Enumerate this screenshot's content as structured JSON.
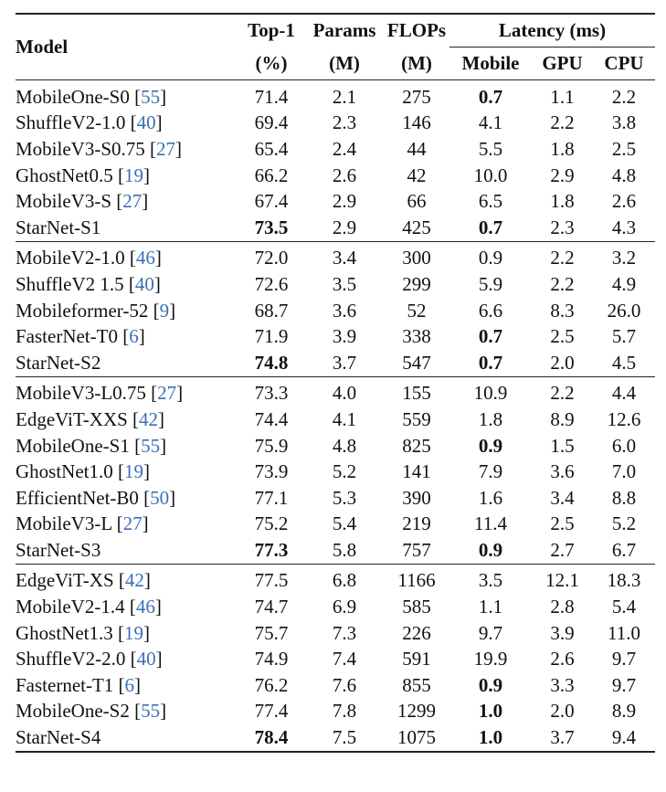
{
  "header": {
    "model": "Model",
    "top1": "Top-1",
    "top1_unit": "(%)",
    "params": "Params",
    "params_unit": "(M)",
    "flops": "FLOPs",
    "flops_unit": "(M)",
    "latency": "Latency (ms)",
    "mobile": "Mobile",
    "gpu": "GPU",
    "cpu": "CPU"
  },
  "colors": {
    "ref": "#3b6fb6",
    "text": "#111111"
  },
  "groups": [
    {
      "rows": [
        {
          "name": "MobileOne-S0",
          "ref": "55",
          "top1": "71.4",
          "params": "2.1",
          "flops": "275",
          "mobile": "0.7",
          "gpu": "1.1",
          "cpu": "2.2",
          "bold": [
            "mobile"
          ]
        },
        {
          "name": "ShuffleV2-1.0",
          "ref": "40",
          "top1": "69.4",
          "params": "2.3",
          "flops": "146",
          "mobile": "4.1",
          "gpu": "2.2",
          "cpu": "3.8",
          "bold": []
        },
        {
          "name": "MobileV3-S0.75",
          "ref": "27",
          "top1": "65.4",
          "params": "2.4",
          "flops": "44",
          "mobile": "5.5",
          "gpu": "1.8",
          "cpu": "2.5",
          "bold": []
        },
        {
          "name": "GhostNet0.5",
          "ref": "19",
          "top1": "66.2",
          "params": "2.6",
          "flops": "42",
          "mobile": "10.0",
          "gpu": "2.9",
          "cpu": "4.8",
          "bold": []
        },
        {
          "name": "MobileV3-S",
          "ref": "27",
          "top1": "67.4",
          "params": "2.9",
          "flops": "66",
          "mobile": "6.5",
          "gpu": "1.8",
          "cpu": "2.6",
          "bold": []
        },
        {
          "name": "StarNet-S1",
          "ref": "",
          "top1": "73.5",
          "params": "2.9",
          "flops": "425",
          "mobile": "0.7",
          "gpu": "2.3",
          "cpu": "4.3",
          "bold": [
            "top1",
            "mobile"
          ]
        }
      ]
    },
    {
      "rows": [
        {
          "name": "MobileV2-1.0",
          "ref": "46",
          "top1": "72.0",
          "params": "3.4",
          "flops": "300",
          "mobile": "0.9",
          "gpu": "2.2",
          "cpu": "3.2",
          "bold": []
        },
        {
          "name": "ShuffleV2 1.5",
          "ref": "40",
          "top1": "72.6",
          "params": "3.5",
          "flops": "299",
          "mobile": "5.9",
          "gpu": "2.2",
          "cpu": "4.9",
          "bold": []
        },
        {
          "name": "Mobileformer-52",
          "ref": "9",
          "top1": "68.7",
          "params": "3.6",
          "flops": "52",
          "mobile": "6.6",
          "gpu": "8.3",
          "cpu": "26.0",
          "bold": []
        },
        {
          "name": "FasterNet-T0",
          "ref": "6",
          "top1": "71.9",
          "params": "3.9",
          "flops": "338",
          "mobile": "0.7",
          "gpu": "2.5",
          "cpu": "5.7",
          "bold": [
            "mobile"
          ]
        },
        {
          "name": "StarNet-S2",
          "ref": "",
          "top1": "74.8",
          "params": "3.7",
          "flops": "547",
          "mobile": "0.7",
          "gpu": "2.0",
          "cpu": "4.5",
          "bold": [
            "top1",
            "mobile"
          ]
        }
      ]
    },
    {
      "rows": [
        {
          "name": "MobileV3-L0.75",
          "ref": "27",
          "top1": "73.3",
          "params": "4.0",
          "flops": "155",
          "mobile": "10.9",
          "gpu": "2.2",
          "cpu": "4.4",
          "bold": []
        },
        {
          "name": "EdgeViT-XXS",
          "ref": "42",
          "top1": "74.4",
          "params": "4.1",
          "flops": "559",
          "mobile": "1.8",
          "gpu": "8.9",
          "cpu": "12.6",
          "bold": []
        },
        {
          "name": "MobileOne-S1",
          "ref": "55",
          "top1": "75.9",
          "params": "4.8",
          "flops": "825",
          "mobile": "0.9",
          "gpu": "1.5",
          "cpu": "6.0",
          "bold": [
            "mobile"
          ]
        },
        {
          "name": "GhostNet1.0",
          "ref": "19",
          "top1": "73.9",
          "params": "5.2",
          "flops": "141",
          "mobile": "7.9",
          "gpu": "3.6",
          "cpu": "7.0",
          "bold": []
        },
        {
          "name": "EfficientNet-B0",
          "ref": "50",
          "top1": "77.1",
          "params": "5.3",
          "flops": "390",
          "mobile": "1.6",
          "gpu": "3.4",
          "cpu": "8.8",
          "bold": []
        },
        {
          "name": "MobileV3-L",
          "ref": "27",
          "top1": "75.2",
          "params": "5.4",
          "flops": "219",
          "mobile": "11.4",
          "gpu": "2.5",
          "cpu": "5.2",
          "bold": []
        },
        {
          "name": "StarNet-S3",
          "ref": "",
          "top1": "77.3",
          "params": "5.8",
          "flops": "757",
          "mobile": "0.9",
          "gpu": "2.7",
          "cpu": "6.7",
          "bold": [
            "top1",
            "mobile"
          ]
        }
      ]
    },
    {
      "rows": [
        {
          "name": "EdgeViT-XS",
          "ref": "42",
          "top1": "77.5",
          "params": "6.8",
          "flops": "1166",
          "mobile": "3.5",
          "gpu": "12.1",
          "cpu": "18.3",
          "bold": []
        },
        {
          "name": "MobileV2-1.4",
          "ref": "46",
          "top1": "74.7",
          "params": "6.9",
          "flops": "585",
          "mobile": "1.1",
          "gpu": "2.8",
          "cpu": "5.4",
          "bold": []
        },
        {
          "name": "GhostNet1.3",
          "ref": "19",
          "top1": "75.7",
          "params": "7.3",
          "flops": "226",
          "mobile": "9.7",
          "gpu": "3.9",
          "cpu": "11.0",
          "bold": []
        },
        {
          "name": "ShuffleV2-2.0",
          "ref": "40",
          "top1": "74.9",
          "params": "7.4",
          "flops": "591",
          "mobile": "19.9",
          "gpu": "2.6",
          "cpu": "9.7",
          "bold": []
        },
        {
          "name": "Fasternet-T1",
          "ref": "6",
          "top1": "76.2",
          "params": "7.6",
          "flops": "855",
          "mobile": "0.9",
          "gpu": "3.3",
          "cpu": "9.7",
          "bold": [
            "mobile"
          ]
        },
        {
          "name": "MobileOne-S2",
          "ref": "55",
          "top1": "77.4",
          "params": "7.8",
          "flops": "1299",
          "mobile": "1.0",
          "gpu": "2.0",
          "cpu": "8.9",
          "bold": [
            "mobile"
          ]
        },
        {
          "name": "StarNet-S4",
          "ref": "",
          "top1": "78.4",
          "params": "7.5",
          "flops": "1075",
          "mobile": "1.0",
          "gpu": "3.7",
          "cpu": "9.4",
          "bold": [
            "top1",
            "mobile"
          ]
        }
      ]
    }
  ]
}
